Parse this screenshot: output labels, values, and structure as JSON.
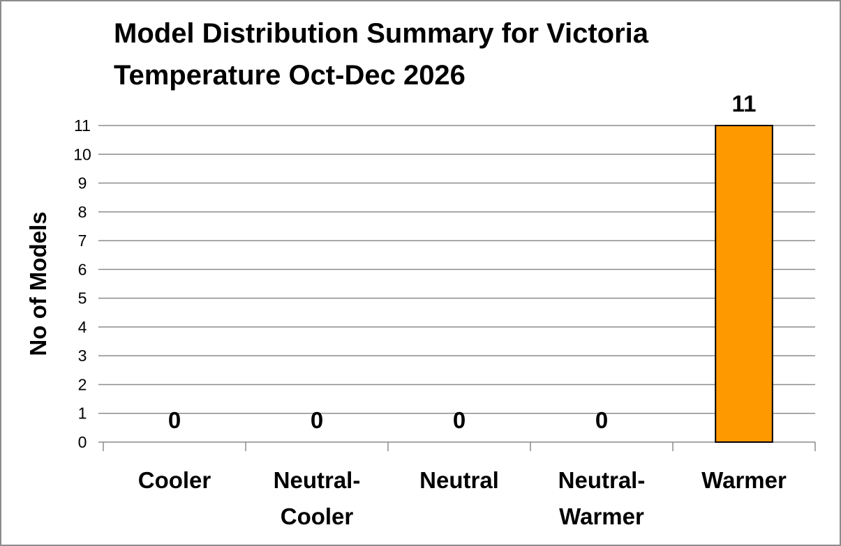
{
  "chart_data": {
    "type": "bar",
    "title_lines": [
      "Model Distribution Summary for Victoria",
      "Temperature Oct-Dec 2026"
    ],
    "ylabel": "No of Models",
    "xlabel": "",
    "categories": [
      [
        "Cooler"
      ],
      [
        "Neutral-",
        "Cooler"
      ],
      [
        "Neutral"
      ],
      [
        "Neutral-",
        "Warmer"
      ],
      [
        "Warmer"
      ]
    ],
    "values": [
      0,
      0,
      0,
      0,
      11
    ],
    "data_labels": [
      "0",
      "0",
      "0",
      "0",
      "11"
    ],
    "ylim": [
      0,
      11
    ],
    "yticks": [
      0,
      1,
      2,
      3,
      4,
      5,
      6,
      7,
      8,
      9,
      10,
      11
    ],
    "grid": true,
    "legend": "none",
    "bar_color": "#ff9900",
    "bar_outline_color": "#000000",
    "grid_color": "#8c8c8c"
  }
}
